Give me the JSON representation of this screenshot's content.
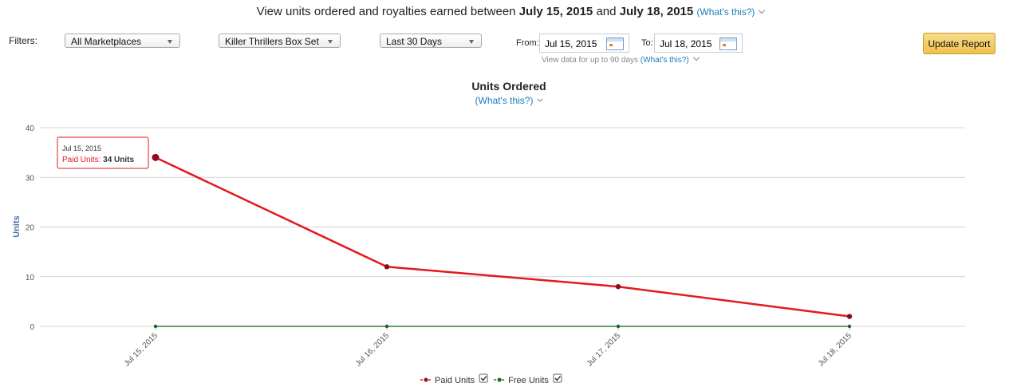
{
  "header": {
    "text": "View units ordered and royalties earned between",
    "start": "July 15, 2015",
    "and": "and",
    "end": "July 18, 2015",
    "whats_this": "(What's this?)"
  },
  "filters": {
    "label": "Filters:",
    "marketplace": "All Marketplaces",
    "book": "Killer Thrillers Box Set",
    "range": "Last 30 Days",
    "from_label": "From:",
    "from": "Jul 15, 2015",
    "to_label": "To:",
    "to": "Jul 18, 2015",
    "note": "View data for up to 90 days",
    "note_link": "(What's this?)",
    "button": "Update Report"
  },
  "chart_data": {
    "type": "line",
    "title": "Units Ordered",
    "subtitle": "(What's this?)",
    "y_label": "Units",
    "categories": [
      "Jul 15, 2015",
      "Jul 16, 2015",
      "Jul 17, 2015",
      "Jul 18, 2015"
    ],
    "series": [
      {
        "name": "Paid Units",
        "color": "#e3191e",
        "values": [
          34,
          12,
          8,
          2
        ]
      },
      {
        "name": "Free Units",
        "color": "#2e7d32",
        "values": [
          0,
          0,
          0,
          0
        ]
      }
    ],
    "ylim": [
      0,
      40
    ],
    "yticks": [
      0,
      10,
      20,
      30,
      40
    ],
    "grid": true,
    "tooltip": {
      "date": "Jul 15, 2015",
      "label": "Paid Units:",
      "value": "34 Units"
    }
  }
}
